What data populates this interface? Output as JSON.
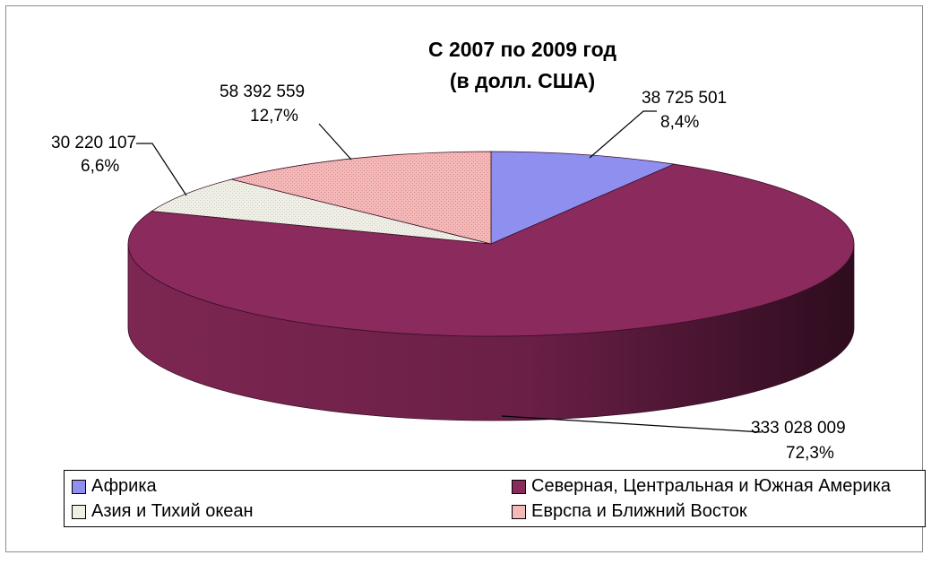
{
  "chart_data": {
    "type": "pie",
    "title": [
      "С 2007 по 2009 год",
      "(в долл. США)"
    ],
    "slices": [
      {
        "name": "Африка",
        "value": 38725501,
        "value_label": "38 725 501",
        "percent_label": "8,4%",
        "percent": 8.4,
        "color": "#8f8ff0"
      },
      {
        "name": "Северная, Центральная и Южная Америка",
        "value": 333028009,
        "value_label": "333 028 009",
        "percent_label": "72,3%",
        "percent": 72.3,
        "color": "#8b2a5c"
      },
      {
        "name": "Азия и Тихий океан",
        "value": 30220107,
        "value_label": "30 220 107",
        "percent_label": "6,6%",
        "percent": 6.6,
        "color": "#efefe6"
      },
      {
        "name": "Еврспа и Ближний Восток",
        "value": 58392559,
        "value_label": "58 392 559",
        "percent_label": "12,7%",
        "percent": 12.7,
        "color": "#f4b8b8"
      }
    ],
    "legend": {
      "position": "bottom",
      "items": [
        "Африка",
        "Северная, Центральная и Южная Америка",
        "Азия и Тихий океан",
        "Еврспа и Ближний Восток"
      ]
    },
    "style": "3d"
  }
}
